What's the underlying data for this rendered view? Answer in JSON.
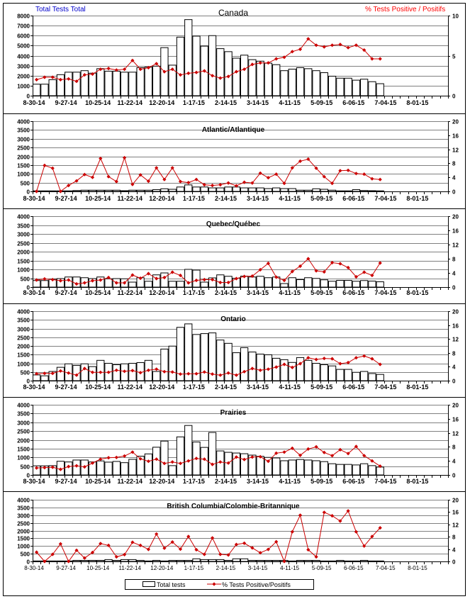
{
  "header": {
    "left_axis_title": "Total Tests Total",
    "right_axis_title": "% Tests Positive / Positifs",
    "left_color": "#0000cc",
    "right_color": "#ff0000"
  },
  "legend": {
    "bars_label": "Total tests",
    "line_label": "% Tests Positive/Positifs"
  },
  "colors": {
    "line": "#cc0000",
    "bar_fill": "#ffffff",
    "bar_stroke": "#000000",
    "grid": "#808080"
  },
  "chart_data": [
    {
      "type": "bar+line",
      "title": "Canada",
      "x_tick_labels": [
        "8-30-14",
        "9-27-14",
        "10-25-14",
        "11-22-14",
        "12-20-14",
        "1-17-15",
        "2-14-15",
        "3-14-15",
        "4-11-15",
        "5-09-15",
        "6-06-15",
        "7-04-15",
        "8-01-15"
      ],
      "weeks_total": 52,
      "ylim_left": [
        0,
        8000
      ],
      "yticks_left": [
        0,
        1000,
        2000,
        3000,
        4000,
        5000,
        6000,
        7000,
        8000
      ],
      "ylim_right": [
        0,
        10
      ],
      "yticks_right": [
        0,
        5,
        10
      ],
      "total_tests": [
        1150,
        1150,
        1600,
        2100,
        2350,
        2350,
        2500,
        2250,
        2700,
        2450,
        2450,
        2350,
        2350,
        2800,
        2850,
        2950,
        4800,
        3050,
        5850,
        7600,
        5950,
        4950,
        6000,
        4700,
        4400,
        3750,
        4050,
        3600,
        3450,
        3250,
        3100,
        2500,
        2650,
        2800,
        2700,
        2500,
        2300,
        1950,
        1750,
        1750,
        1550,
        1650,
        1400,
        1200
      ],
      "pct_positive": [
        2.0,
        2.3,
        2.3,
        2.0,
        2.1,
        1.8,
        2.6,
        2.7,
        3.3,
        3.4,
        3.2,
        3.3,
        4.4,
        3.3,
        3.5,
        4.0,
        3.0,
        3.3,
        2.6,
        2.8,
        2.9,
        3.1,
        2.5,
        2.2,
        2.4,
        3.0,
        3.3,
        3.9,
        4.1,
        4.1,
        4.6,
        4.8,
        5.5,
        5.8,
        7.1,
        6.3,
        6.1,
        6.3,
        6.4,
        6.0,
        6.3,
        5.7,
        4.6,
        4.6
      ]
    },
    {
      "type": "bar+line",
      "title": "Atlantic/Atlantique",
      "x_tick_labels": [
        "8-30-14",
        "9-27-14",
        "10-25-14",
        "11-22-14",
        "12-20-14",
        "1-17-15",
        "2-14-15",
        "3-14-15",
        "4-11-15",
        "5-09-15",
        "6-06-15",
        "7-04-15",
        "8-01-15"
      ],
      "weeks_total": 52,
      "ylim_left": [
        0,
        4000
      ],
      "yticks_left": [
        0,
        500,
        1000,
        1500,
        2000,
        2500,
        3000,
        3500,
        4000
      ],
      "ylim_right": [
        0,
        20
      ],
      "yticks_right": [
        0,
        4,
        8,
        12,
        16,
        20
      ],
      "total_tests": [
        30,
        30,
        30,
        30,
        30,
        50,
        70,
        70,
        70,
        70,
        70,
        40,
        70,
        70,
        70,
        100,
        150,
        120,
        250,
        370,
        250,
        250,
        200,
        200,
        250,
        250,
        200,
        200,
        200,
        160,
        200,
        160,
        160,
        70,
        70,
        150,
        120,
        70,
        30,
        30,
        100,
        50,
        40,
        30
      ],
      "pct_positive": [
        0,
        7.4,
        6.6,
        0,
        1.7,
        3.0,
        4.8,
        4.0,
        9.4,
        4.2,
        2.8,
        9.6,
        2.0,
        4.7,
        2.9,
        6.7,
        3.4,
        6.7,
        2.8,
        2.5,
        3.4,
        1.9,
        1.7,
        1.9,
        2.4,
        1.6,
        2.6,
        2.4,
        5.2,
        3.9,
        4.9,
        2.3,
        6.7,
        8.6,
        9.2,
        6.6,
        4.2,
        2.3,
        5.9,
        6.0,
        5.1,
        4.9,
        3.6,
        3.4
      ]
    },
    {
      "type": "bar+line",
      "title": "Quebec/Québec",
      "x_tick_labels": [
        "8-30-14",
        "9-27-14",
        "10-25-14",
        "11-22-14",
        "12-20-14",
        "1-17-15",
        "2-14-15",
        "3-14-15",
        "4-11-15",
        "5-09-15",
        "6-06-15",
        "7-04-15",
        "8-01-15"
      ],
      "weeks_total": 52,
      "ylim_left": [
        0,
        4000
      ],
      "yticks_left": [
        0,
        500,
        1000,
        1500,
        2000,
        2500,
        3000,
        3500,
        4000
      ],
      "ylim_right": [
        0,
        20
      ],
      "yticks_right": [
        0,
        4,
        8,
        12,
        16,
        20
      ],
      "total_tests": [
        370,
        370,
        450,
        480,
        570,
        570,
        530,
        480,
        570,
        470,
        480,
        470,
        280,
        530,
        330,
        690,
        800,
        330,
        330,
        1000,
        960,
        280,
        520,
        690,
        610,
        500,
        620,
        570,
        610,
        530,
        570,
        200,
        530,
        420,
        530,
        490,
        410,
        330,
        380,
        380,
        330,
        370,
        340,
        300
      ],
      "pct_positive": [
        2.0,
        2.3,
        2.1,
        1.8,
        2.0,
        0.9,
        1.2,
        1.8,
        2.0,
        2.7,
        1.2,
        1.2,
        3.4,
        2.5,
        3.8,
        2.4,
        2.7,
        4.2,
        3.3,
        1.2,
        1.9,
        2.1,
        2.1,
        1.3,
        1.3,
        2.4,
        3.0,
        3.1,
        4.9,
        6.7,
        2.8,
        1.9,
        4.4,
        5.9,
        8.0,
        4.6,
        4.3,
        6.9,
        6.6,
        5.5,
        2.9,
        4.2,
        3.3,
        6.8
      ]
    },
    {
      "type": "bar+line",
      "title": "Ontario",
      "x_tick_labels": [
        "8-30-14",
        "9-27-14",
        "10-25-14",
        "11-22-14",
        "12-20-14",
        "1-17-15",
        "2-14-15",
        "3-14-15",
        "4-11-15",
        "5-09-15",
        "6-06-15",
        "7-04-15",
        "8-01-15"
      ],
      "weeks_total": 52,
      "ylim_left": [
        0,
        4000
      ],
      "yticks_left": [
        0,
        500,
        1000,
        1500,
        2000,
        2500,
        3000,
        3500,
        4000
      ],
      "ylim_right": [
        0,
        20
      ],
      "yticks_right": [
        0,
        4,
        8,
        12,
        16,
        20
      ],
      "total_tests": [
        330,
        280,
        530,
        770,
        970,
        880,
        970,
        810,
        1170,
        1000,
        920,
        970,
        1000,
        1040,
        1170,
        530,
        1820,
        1990,
        3070,
        3270,
        2660,
        2710,
        2750,
        2340,
        2150,
        1610,
        1900,
        1650,
        1530,
        1490,
        1290,
        1210,
        1050,
        1330,
        1170,
        1000,
        920,
        850,
        650,
        650,
        480,
        530,
        410,
        360
      ],
      "pct_positive": [
        2.0,
        2.1,
        2.1,
        2.8,
        2.2,
        1.6,
        3.5,
        2.4,
        2.4,
        2.4,
        3.0,
        2.7,
        2.9,
        2.3,
        3.0,
        3.3,
        2.6,
        2.5,
        1.9,
        2.0,
        2.0,
        2.5,
        1.9,
        1.6,
        2.2,
        1.6,
        2.6,
        3.5,
        3.0,
        3.3,
        3.9,
        4.7,
        3.8,
        4.9,
        6.6,
        6.1,
        6.4,
        6.3,
        4.9,
        5.2,
        6.6,
        7.1,
        6.3,
        4.7
      ]
    },
    {
      "type": "bar+line",
      "title": "Prairies",
      "x_tick_labels": [
        "8-30-14",
        "9-27-14",
        "10-25-14",
        "11-22-14",
        "12-20-14",
        "1-17-15",
        "2-14-15",
        "3-14-15",
        "4-11-15",
        "5-09-15",
        "6-06-15",
        "7-04-15",
        "8-01-15"
      ],
      "weeks_total": 52,
      "ylim_left": [
        0,
        4000
      ],
      "yticks_left": [
        0,
        500,
        1000,
        1500,
        2000,
        2500,
        3000,
        3500,
        4000
      ],
      "ylim_right": [
        0,
        20
      ],
      "yticks_right": [
        0,
        4,
        8,
        12,
        16,
        20
      ],
      "total_tests": [
        520,
        520,
        530,
        780,
        740,
        850,
        850,
        740,
        800,
        730,
        770,
        700,
        890,
        1070,
        1200,
        1580,
        1930,
        530,
        2170,
        2820,
        1880,
        1570,
        2420,
        1370,
        1290,
        1250,
        1210,
        1130,
        1060,
        1000,
        970,
        810,
        850,
        880,
        850,
        810,
        760,
        640,
        600,
        600,
        570,
        640,
        530,
        450
      ],
      "pct_positive": [
        2.0,
        2.1,
        2.2,
        1.6,
        2.4,
        2.6,
        2.3,
        3.4,
        4.5,
        4.9,
        5.0,
        5.4,
        6.5,
        4.6,
        3.9,
        4.5,
        3.3,
        3.7,
        3.3,
        4.0,
        4.7,
        4.5,
        3.0,
        3.7,
        3.4,
        5.1,
        4.4,
        5.1,
        5.2,
        3.9,
        6.2,
        6.5,
        7.6,
        5.6,
        7.4,
        8.0,
        6.4,
        5.5,
        7.2,
        6.1,
        8.1,
        5.5,
        4.0,
        2.5
      ]
    },
    {
      "type": "bar+line",
      "title": "British Columbia/Colombie-Britannique",
      "x_tick_labels": [
        "8-30-14",
        "9-27-14",
        "10-25-14",
        "11-22-14",
        "12-20-14",
        "1-17-15",
        "2-14-15",
        "3-14-15",
        "4-11-15",
        "5-09-15",
        "6-06-15",
        "7-04-15",
        "8-01-15"
      ],
      "weeks_total": 52,
      "ylim_left": [
        0,
        4000
      ],
      "yticks_left": [
        0,
        500,
        1000,
        1500,
        2000,
        2500,
        3000,
        3500,
        4000
      ],
      "ylim_right": [
        0,
        20
      ],
      "yticks_right": [
        0,
        4,
        8,
        12,
        16,
        20
      ],
      "total_tests": [
        30,
        30,
        30,
        30,
        30,
        70,
        70,
        70,
        70,
        120,
        70,
        120,
        120,
        70,
        30,
        70,
        30,
        70,
        70,
        70,
        170,
        120,
        120,
        120,
        70,
        170,
        170,
        70,
        70,
        70,
        70,
        70,
        30,
        70,
        70,
        70,
        30,
        30,
        70,
        30,
        30,
        70,
        30,
        30
      ],
      "pct_positive": [
        3.0,
        0,
        2.3,
        5.7,
        0,
        3.6,
        1.1,
        2.9,
        5.8,
        5.2,
        1.5,
        2.2,
        6.2,
        5.2,
        3.9,
        8.9,
        4.3,
        6.3,
        4.0,
        8.1,
        3.8,
        2.3,
        7.6,
        2.3,
        2.1,
        5.5,
        5.9,
        4.4,
        2.8,
        3.9,
        6.4,
        0,
        9.6,
        15.0,
        3.8,
        1.5,
        15.9,
        14.8,
        13.1,
        16.4,
        9.6,
        5.0,
        8.1,
        10.9
      ]
    }
  ]
}
